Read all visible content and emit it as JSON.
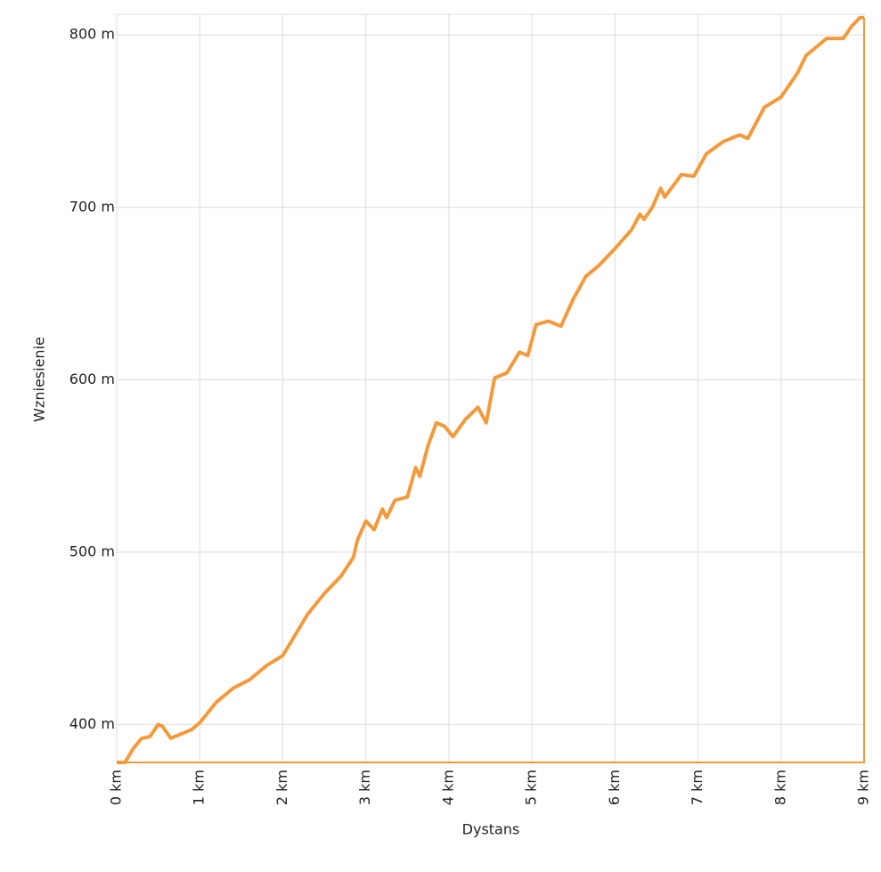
{
  "chart_data": {
    "type": "line",
    "xlabel": "Dystans",
    "ylabel": "Wzniesienie",
    "x": [
      0,
      0.1,
      0.2,
      0.3,
      0.4,
      0.5,
      0.55,
      0.65,
      0.8,
      0.9,
      1.0,
      1.2,
      1.4,
      1.6,
      1.8,
      2.0,
      2.1,
      2.3,
      2.5,
      2.7,
      2.85,
      2.9,
      3.0,
      3.1,
      3.2,
      3.25,
      3.35,
      3.5,
      3.6,
      3.65,
      3.75,
      3.85,
      3.95,
      4.05,
      4.2,
      4.35,
      4.45,
      4.55,
      4.7,
      4.85,
      4.95,
      5.05,
      5.2,
      5.35,
      5.5,
      5.65,
      5.8,
      6.0,
      6.2,
      6.3,
      6.35,
      6.45,
      6.55,
      6.6,
      6.8,
      6.95,
      7.1,
      7.3,
      7.5,
      7.6,
      7.8,
      8.0,
      8.2,
      8.3,
      8.5,
      8.55,
      8.75,
      8.85,
      8.95,
      9.0
    ],
    "series": [
      {
        "color": "#f39a3c",
        "values": [
          378,
          378,
          386,
          392,
          393,
          400,
          399,
          392,
          395,
          397,
          401,
          413,
          421,
          426,
          434,
          440,
          448,
          464,
          476,
          486,
          497,
          507,
          518,
          513,
          525,
          520,
          530,
          532,
          549,
          544,
          562,
          575,
          573,
          567,
          577,
          584,
          575,
          601,
          604,
          616,
          614,
          632,
          634,
          631,
          647,
          660,
          666,
          676,
          687,
          696,
          693,
          700,
          711,
          706,
          719,
          718,
          731,
          738,
          742,
          740,
          758,
          764,
          778,
          788,
          796,
          798,
          798,
          805,
          810,
          810
        ]
      }
    ],
    "xlim": [
      0,
      9
    ],
    "ylim": [
      378,
      812
    ],
    "xticks": [
      {
        "value": 0,
        "label": "0 km"
      },
      {
        "value": 1,
        "label": "1 km"
      },
      {
        "value": 2,
        "label": "2 km"
      },
      {
        "value": 3,
        "label": "3 km"
      },
      {
        "value": 4,
        "label": "4 km"
      },
      {
        "value": 5,
        "label": "5 km"
      },
      {
        "value": 6,
        "label": "6 km"
      },
      {
        "value": 7,
        "label": "7 km"
      },
      {
        "value": 8,
        "label": "8 km"
      },
      {
        "value": 9,
        "label": "9 km"
      }
    ],
    "yticks": [
      {
        "value": 400,
        "label": "400 m"
      },
      {
        "value": 500,
        "label": "500 m"
      },
      {
        "value": 600,
        "label": "600 m"
      },
      {
        "value": 700,
        "label": "700 m"
      },
      {
        "value": 800,
        "label": "800 m"
      }
    ],
    "grid": true
  }
}
